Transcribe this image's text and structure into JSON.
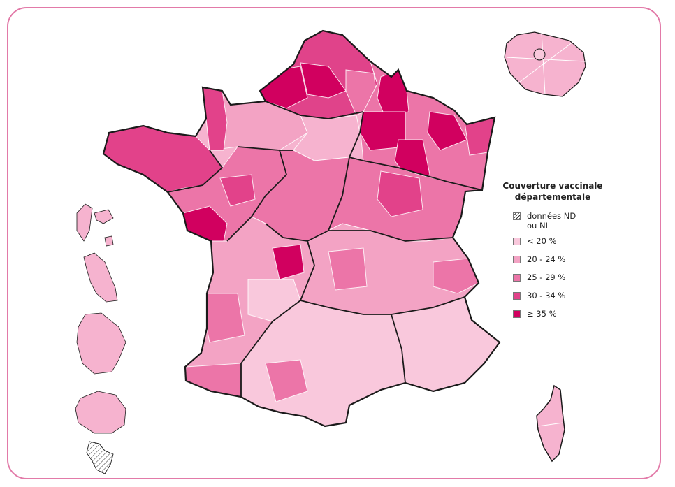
{
  "legend": {
    "title_line1": "Couverture vaccinale",
    "title_line2": "départementale",
    "items": [
      {
        "label_line1": "données ND",
        "label_line2": "ou NI",
        "color": "hatch"
      },
      {
        "label_line1": "< 20 %",
        "color": "#f9c8dc"
      },
      {
        "label_line1": "20 - 24 %",
        "color": "#f3a3c4"
      },
      {
        "label_line1": "25 - 29 %",
        "color": "#ec75a8"
      },
      {
        "label_line1": "30 - 34 %",
        "color": "#e2428a"
      },
      {
        "label_line1": "≥ 35 %",
        "color": "#d1005f"
      }
    ]
  },
  "colors": {
    "frame": "#e27aa8",
    "border": "#1a1a1a"
  }
}
